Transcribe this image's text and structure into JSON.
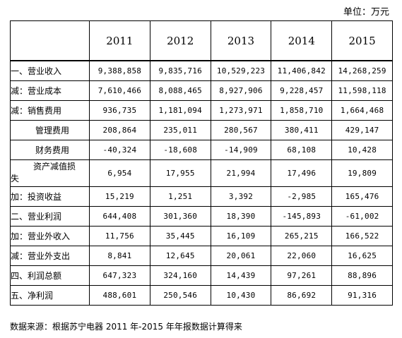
{
  "unit_label": "单位：万元",
  "years": [
    "2011",
    "2012",
    "2013",
    "2014",
    "2015"
  ],
  "rows": [
    {
      "label": "一、营业收入",
      "values": [
        "9,388,858",
        "9,835,716",
        "10,529,223",
        "11,406,842",
        "14,268,259"
      ]
    },
    {
      "label": "减：营业成本",
      "values": [
        "7,610,466",
        "8,088,465",
        "8,927,906",
        "9,228,457",
        "11,598,118"
      ]
    },
    {
      "label": "减：销售费用",
      "values": [
        "936,735",
        "1,181,094",
        "1,273,971",
        "1,858,710",
        "1,664,468"
      ]
    },
    {
      "label": "管理费用",
      "values": [
        "208,864",
        "235,011",
        "280,567",
        "380,411",
        "429,147"
      ]
    },
    {
      "label": "财务费用",
      "values": [
        "-40,324",
        "-18,608",
        "-14,909",
        "68,108",
        "10,428"
      ]
    },
    {
      "label_line1": "资产减值损",
      "label_line2": "失",
      "values": [
        "6,954",
        "17,955",
        "21,994",
        "17,496",
        "19,809"
      ]
    },
    {
      "label": "加：投资收益",
      "values": [
        "15,219",
        "1,251",
        "3,392",
        "-2,985",
        "165,476"
      ]
    },
    {
      "label": "二、营业利润",
      "values": [
        "644,408",
        "301,360",
        "18,390",
        "-145,893",
        "-61,002"
      ]
    },
    {
      "label": "加：营业外收入",
      "values": [
        "11,756",
        "35,445",
        "16,109",
        "265,215",
        "166,522"
      ]
    },
    {
      "label": "减：营业外支出",
      "values": [
        "8,841",
        "12,645",
        "20,061",
        "22,060",
        "16,625"
      ]
    },
    {
      "label": "四、利润总额",
      "values": [
        "647,323",
        "324,160",
        "14,439",
        "97,261",
        "88,896"
      ]
    },
    {
      "label": "五、净利润",
      "values": [
        "488,601",
        "250,546",
        "10,430",
        "86,692",
        "91,316"
      ]
    }
  ],
  "source": "数据来源：根据苏宁电器 2011 年-2015 年年报数据计算得来"
}
